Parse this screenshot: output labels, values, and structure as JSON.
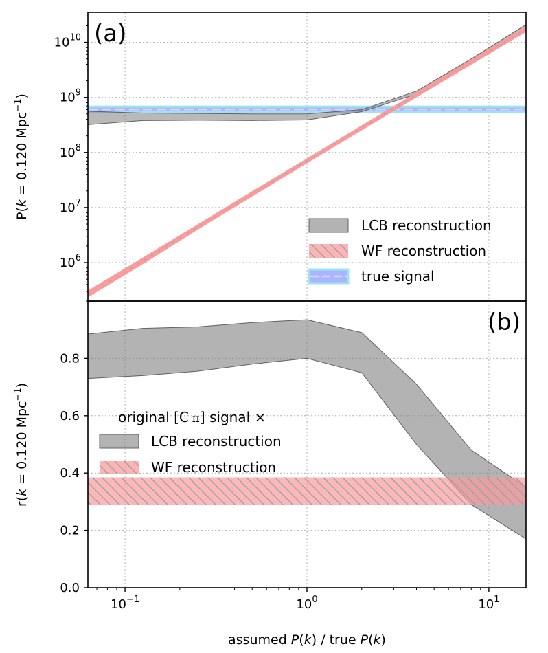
{
  "chart_data": [
    {
      "type": "area",
      "panel": "(a)",
      "ylabel_prefix": "P(",
      "ylabel_k": "k",
      "ylabel_suffix": " = 0.120 Mpc",
      "ylabel_sup": "−1",
      "ylabel_close": ")",
      "yscale": "log",
      "xscale": "log",
      "xlim": [
        0.0625,
        16
      ],
      "ylim": [
        200000,
        35000000000
      ],
      "yticks": [
        {
          "value": 1000000,
          "base": "10",
          "exp": "6"
        },
        {
          "value": 10000000,
          "base": "10",
          "exp": "7"
        },
        {
          "value": 100000000,
          "base": "10",
          "exp": "8"
        },
        {
          "value": 1000000000,
          "base": "10",
          "exp": "9"
        },
        {
          "value": 10000000000,
          "base": "10",
          "exp": "10"
        }
      ],
      "x": [
        0.0625,
        0.125,
        0.25,
        0.5,
        1,
        2,
        4,
        8,
        16
      ],
      "series": [
        {
          "name": "LCB reconstruction",
          "color": "#808080",
          "lower": [
            320000000,
            380000000,
            385000000,
            380000000,
            390000000,
            550000000,
            1150000000,
            4500000000,
            18500000000
          ],
          "upper": [
            560000000,
            520000000,
            510000000,
            500000000,
            500000000,
            600000000,
            1300000000,
            5000000000,
            21000000000
          ]
        },
        {
          "name": "WF reconstruction",
          "color": "#ff9999",
          "lower": [
            250000,
            1000000,
            4200000,
            17000000,
            68000000,
            270000000,
            1070000000,
            4200000000,
            16500000000
          ],
          "upper": [
            290000,
            1150000,
            4600000,
            18500000,
            73000000,
            290000000,
            1150000000,
            4600000000,
            18000000000
          ]
        },
        {
          "name": "true signal",
          "color": "#9999ff",
          "lower": [
            540000000,
            540000000,
            540000000,
            540000000,
            540000000,
            540000000,
            540000000,
            540000000,
            540000000
          ],
          "upper": [
            680000000,
            680000000,
            680000000,
            680000000,
            680000000,
            680000000,
            680000000,
            680000000,
            680000000
          ]
        }
      ],
      "legend": {
        "placement": "lower-right",
        "entries": [
          "LCB reconstruction",
          "WF reconstruction",
          "true signal"
        ]
      },
      "grid": true
    },
    {
      "type": "area",
      "panel": "(b)",
      "ylabel_prefix": "r(",
      "ylabel_k": "k",
      "ylabel_suffix": " = 0.120 Mpc",
      "ylabel_sup": "−1",
      "ylabel_close": ")",
      "xlabel_a": "assumed ",
      "xlabel_b": "P",
      "xlabel_c": "(",
      "xlabel_d": "k",
      "xlabel_e": ") / true ",
      "xlabel_f": "P",
      "xlabel_g": "(",
      "xlabel_h": "k",
      "xlabel_i": ")",
      "xscale": "log",
      "yscale": "linear",
      "xlim": [
        0.0625,
        16
      ],
      "ylim": [
        0,
        1.0
      ],
      "yticks": [
        "0.0",
        "0.2",
        "0.4",
        "0.6",
        "0.8"
      ],
      "xticks": [
        {
          "value": 0.1,
          "base": "10",
          "exp": "−1"
        },
        {
          "value": 1,
          "base": "10",
          "exp": "0"
        },
        {
          "value": 10,
          "base": "10",
          "exp": "1"
        }
      ],
      "x": [
        0.0625,
        0.125,
        0.25,
        0.5,
        1,
        2,
        4,
        8,
        16
      ],
      "series": [
        {
          "name": "LCB reconstruction",
          "color": "#808080",
          "lower": [
            0.73,
            0.74,
            0.755,
            0.78,
            0.8,
            0.75,
            0.5,
            0.29,
            0.17
          ],
          "upper": [
            0.885,
            0.905,
            0.91,
            0.925,
            0.935,
            0.89,
            0.71,
            0.48,
            0.35
          ]
        },
        {
          "name": "WF reconstruction",
          "color": "#ff9999",
          "lower": [
            0.29,
            0.29,
            0.29,
            0.29,
            0.29,
            0.29,
            0.29,
            0.29,
            0.29
          ],
          "upper": [
            0.385,
            0.385,
            0.385,
            0.385,
            0.385,
            0.385,
            0.385,
            0.385,
            0.385
          ]
        }
      ],
      "legend": {
        "placement": "center-left",
        "title_a": "original [C",
        "title_b": " ɪɪ",
        "title_c": "] signal ×",
        "entries": [
          "LCB reconstruction",
          "WF reconstruction"
        ]
      },
      "grid": true
    }
  ]
}
